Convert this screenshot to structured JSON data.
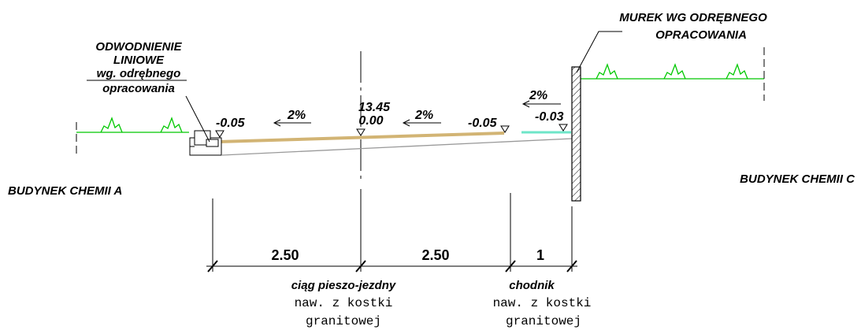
{
  "labels": {
    "left_drain_line1": "ODWODNIENIE",
    "left_drain_line2": "LINIOWE",
    "left_drain_line3": "wg. odrębnego",
    "left_drain_line4": "opracowania",
    "wall_line1": "MUREK WG ODRĘBNEGO",
    "wall_line2": "OPRACOWANIA",
    "building_left": "BUDYNEK CHEMII A",
    "building_right": "BUDYNEK CHEMII C"
  },
  "elevations": {
    "axis_top": "13.45",
    "axis_bottom": "0.00",
    "left_edge": "-0.05",
    "right_edge": "-0.05",
    "sidewalk": "-0.03"
  },
  "slopes": {
    "left": "2%",
    "right": "2%",
    "sidewalk": "2%"
  },
  "dimensions": {
    "d1": "2.50",
    "d2": "2.50",
    "d3": "1"
  },
  "surfaces": {
    "path_name": "ciąg pieszo-jezdny",
    "path_mat1": "naw. z kostki",
    "path_mat2": "granitowej",
    "walk_name": "chodnik",
    "walk_mat1": "naw. z kostki",
    "walk_mat2": "granitowej"
  },
  "colors": {
    "terrain": "#00c800",
    "pavement": "#d2b474",
    "sidewalk": "#6ee6c8",
    "line": "#000000",
    "subgrade": "#999999"
  }
}
